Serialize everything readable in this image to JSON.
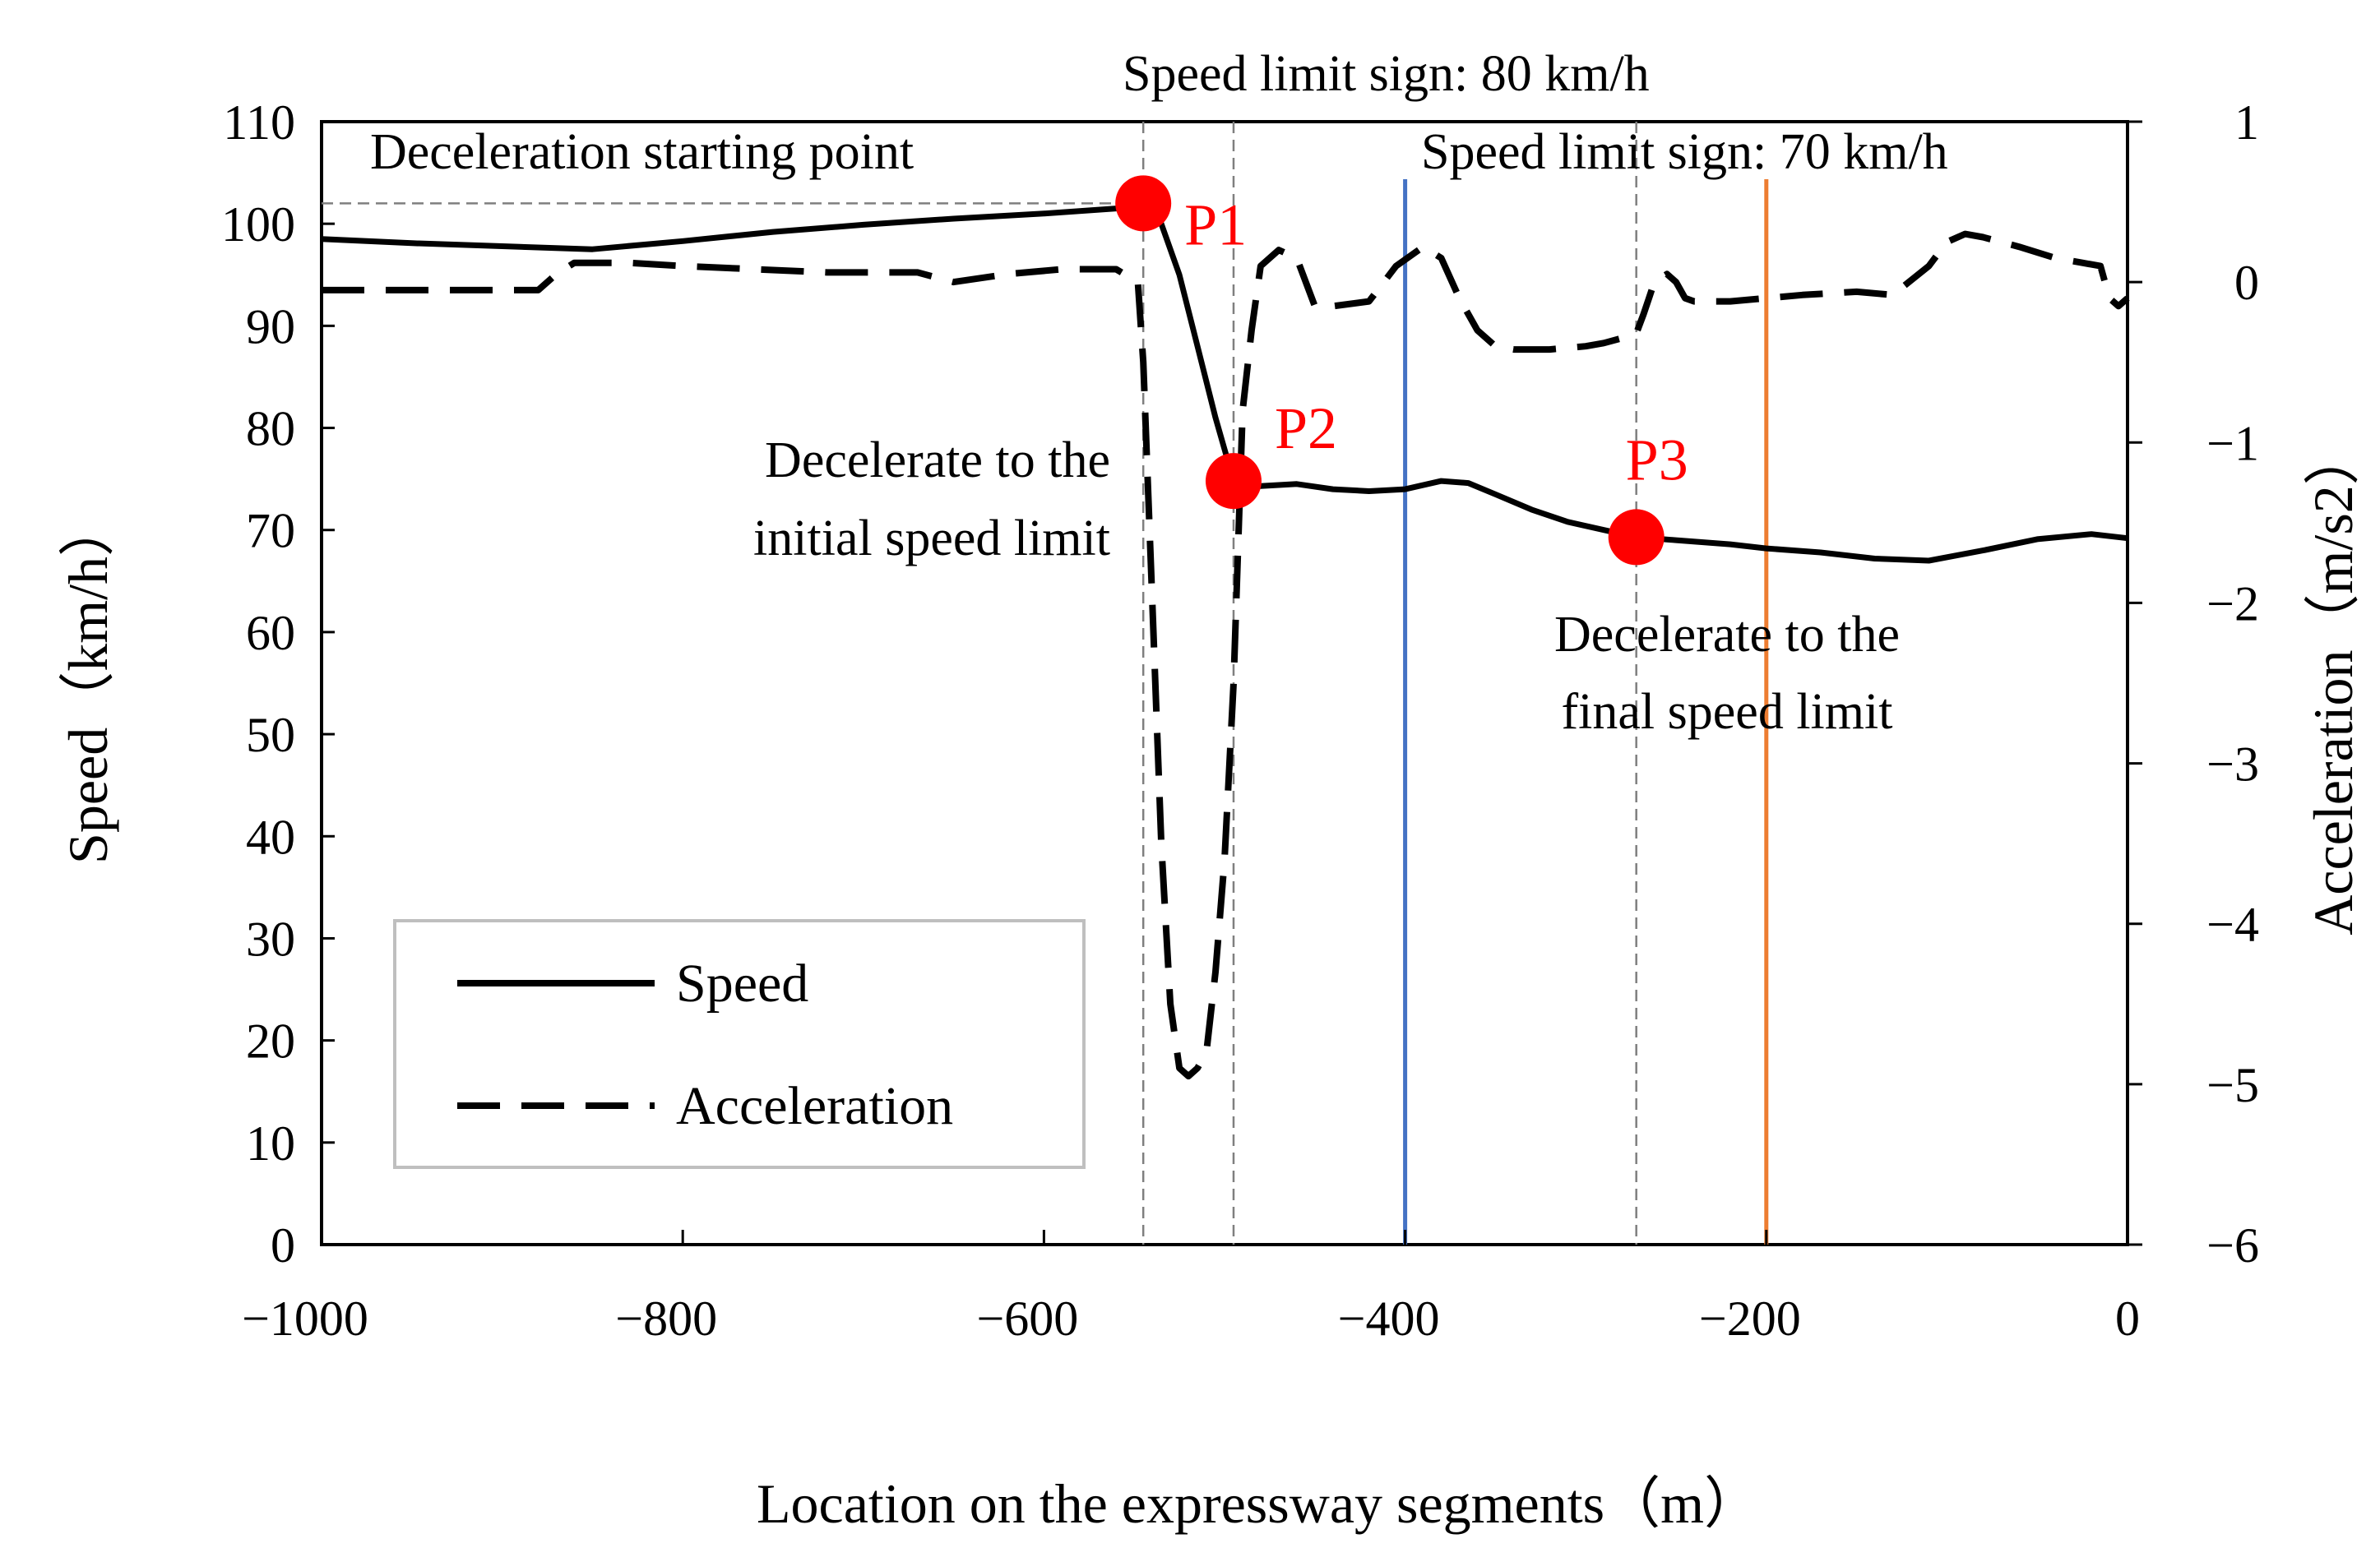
{
  "chart_data": {
    "type": "line",
    "title": "",
    "xlabel": "Location on the expressway segments（m）",
    "ylabel_left": "Speed（km/h）",
    "ylabel_right": "Acceleration（m/s2）",
    "xlim": [
      -1000,
      0
    ],
    "ylim_left": [
      0,
      110
    ],
    "ylim_right": [
      -6,
      1
    ],
    "x_ticks": [
      -1000,
      -800,
      -600,
      -400,
      -200,
      0
    ],
    "x_tick_labels": [
      "−1000",
      "−800",
      "−600",
      "−400",
      "−200",
      "0"
    ],
    "y_left_ticks": [
      0,
      10,
      20,
      30,
      40,
      50,
      60,
      70,
      80,
      90,
      100,
      110
    ],
    "y_left_tick_labels": [
      "0",
      "10",
      "20",
      "30",
      "40",
      "50",
      "60",
      "70",
      "80",
      "90",
      "100",
      "110"
    ],
    "y_right_ticks": [
      -6,
      -5,
      -4,
      -3,
      -2,
      -1,
      0,
      1
    ],
    "y_right_tick_labels": [
      "−6",
      "−5",
      "−4",
      "−3",
      "−2",
      "−1",
      "0",
      "1"
    ],
    "grid": false,
    "legend_position": "bottom-left",
    "series": [
      {
        "name": "Speed",
        "axis": "left",
        "style": "solid",
        "color": "#000000",
        "x": [
          -1000,
          -950,
          -900,
          -850,
          -800,
          -750,
          -700,
          -650,
          -600,
          -560,
          -545,
          -535,
          -525,
          -515,
          -505,
          -495,
          -480,
          -460,
          -440,
          -420,
          -400,
          -380,
          -365,
          -350,
          -330,
          -310,
          -290,
          -272,
          -250,
          -220,
          -200,
          -170,
          -140,
          -110,
          -80,
          -50,
          -20,
          0
        ],
        "values": [
          98.5,
          98.1,
          97.8,
          97.5,
          98.3,
          99.2,
          99.9,
          100.5,
          101.0,
          101.5,
          102.0,
          100.0,
          95.0,
          88.0,
          81.0,
          74.8,
          74.3,
          74.5,
          74.0,
          73.8,
          74.0,
          74.8,
          74.6,
          73.5,
          72.0,
          70.8,
          70.0,
          69.3,
          69.0,
          68.6,
          68.2,
          67.8,
          67.2,
          67.0,
          68.0,
          69.1,
          69.6,
          69.2
        ]
      },
      {
        "name": "Acceleration",
        "axis": "right",
        "style": "dashed",
        "color": "#000000",
        "x": [
          -1000,
          -950,
          -900,
          -880,
          -870,
          -860,
          -830,
          -800,
          -760,
          -720,
          -670,
          -650,
          -620,
          -590,
          -560,
          -548,
          -545,
          -540,
          -535,
          -530,
          -525,
          -520,
          -515,
          -510,
          -505,
          -500,
          -495,
          -490,
          -485,
          -480,
          -470,
          -460,
          -450,
          -440,
          -420,
          -405,
          -390,
          -380,
          -370,
          -360,
          -350,
          -340,
          -320,
          -300,
          -290,
          -280,
          -272,
          -268,
          -265,
          -262,
          -255,
          -250,
          -245,
          -240,
          -220,
          -200,
          -180,
          -150,
          -130,
          -110,
          -100,
          -90,
          -80,
          -60,
          -40,
          -25,
          -15,
          -10,
          -5,
          0
        ],
        "values": [
          -0.05,
          -0.05,
          -0.05,
          -0.05,
          0.05,
          0.12,
          0.12,
          0.1,
          0.08,
          0.06,
          0.06,
          0.0,
          0.05,
          0.08,
          0.08,
          0.0,
          -0.5,
          -2.0,
          -3.5,
          -4.5,
          -4.9,
          -4.95,
          -4.9,
          -4.8,
          -4.3,
          -3.6,
          -2.5,
          -0.8,
          -0.3,
          0.1,
          0.2,
          0.15,
          -0.15,
          -0.15,
          -0.12,
          0.1,
          0.22,
          0.15,
          -0.1,
          -0.3,
          -0.4,
          -0.42,
          -0.42,
          -0.4,
          -0.38,
          -0.35,
          -0.32,
          -0.2,
          -0.1,
          0.0,
          0.05,
          0.0,
          -0.1,
          -0.12,
          -0.12,
          -0.1,
          -0.08,
          -0.06,
          -0.08,
          0.1,
          0.25,
          0.3,
          0.28,
          0.22,
          0.15,
          0.12,
          0.1,
          -0.1,
          -0.15,
          -0.1
        ]
      }
    ],
    "markers": [
      {
        "label": "P1",
        "x": -545,
        "y": 102.0,
        "color": "#ff0000"
      },
      {
        "label": "P2",
        "x": -495,
        "y": 74.8,
        "color": "#ff0000"
      },
      {
        "label": "P3",
        "x": -272,
        "y": 69.3,
        "color": "#ff0000"
      }
    ],
    "vertical_lines": [
      {
        "name": "speed-limit-80",
        "x": -400,
        "color": "#4472c4"
      },
      {
        "name": "speed-limit-70",
        "x": -200,
        "color": "#ed7d31"
      }
    ],
    "guide_lines": {
      "vertical_x": [
        -545,
        -495,
        -272
      ],
      "horizontal_y": 102.0,
      "horizontal_x_end": -545,
      "color": "#7f7f7f"
    },
    "annotations": {
      "deceleration_start": "Deceleration  starting point",
      "sign_80": "Speed limit sign: 80 km/h",
      "sign_70": "Speed limit sign: 70 km/h",
      "initial_line1": "Decelerate  to the",
      "initial_line2": "initial  speed limit",
      "final_line1": "Decelerate  to the",
      "final_line2": "final  speed limit"
    },
    "legend": [
      {
        "label": "Speed",
        "style": "solid"
      },
      {
        "label": "Acceleration",
        "style": "dashed"
      }
    ]
  }
}
